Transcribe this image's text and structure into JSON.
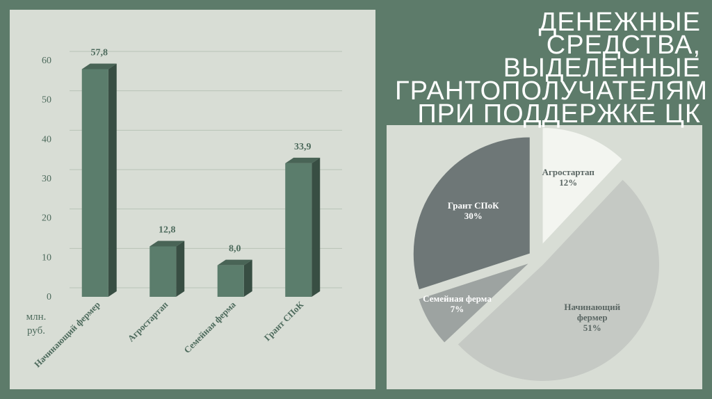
{
  "title": "ДЕНЕЖНЫЕ СРЕДСТВА, ВЫДЕЛЕННЫЕ ГРАНТОПОЛУЧАТЕЛЯМ ПРИ ПОДДЕРЖКЕ ЦК",
  "chart_data": [
    {
      "type": "bar",
      "y_label": "млн. руб.",
      "categories": [
        "Начинающий фермер",
        "Агростартап",
        "Семейная ферма",
        "Грант СПоК"
      ],
      "values": [
        57.8,
        12.8,
        8.0,
        33.9
      ],
      "value_labels": [
        "57,8",
        "12,8",
        "8,0",
        "33,9"
      ],
      "color": "#5b7d6c",
      "ylim": [
        0,
        60
      ],
      "yticks": [
        0,
        10,
        20,
        30,
        40,
        50,
        60
      ],
      "grid": true
    },
    {
      "type": "pie",
      "categories": [
        "Агростартап",
        "Начинающий фермер",
        "Семейная ферма",
        "Грант СПоК"
      ],
      "values": [
        12,
        51,
        7,
        30
      ],
      "value_labels": [
        "12%",
        "51%",
        "7%",
        "30%"
      ],
      "colors": [
        "#f3f5f0",
        "#c5c9c4",
        "#9da3a1",
        "#6e7777"
      ]
    }
  ]
}
